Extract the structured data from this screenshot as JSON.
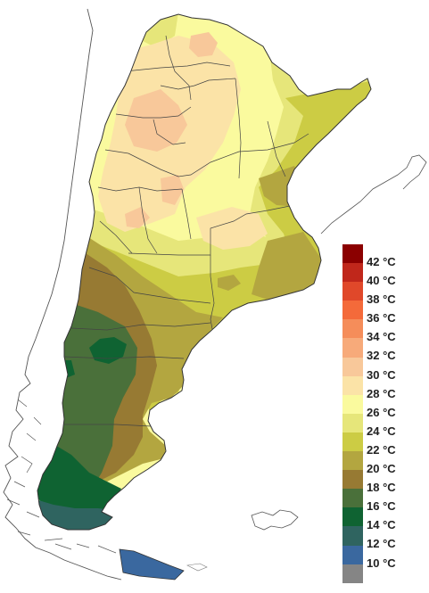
{
  "legend": {
    "bins": [
      {
        "color": "#8b0000",
        "label": "42 °C"
      },
      {
        "color": "#c0271b",
        "label": "40 °C"
      },
      {
        "color": "#e0482a",
        "label": "38 °C"
      },
      {
        "color": "#f46a3a",
        "label": "36 °C"
      },
      {
        "color": "#f58d5a",
        "label": "34 °C"
      },
      {
        "color": "#f7aa7a",
        "label": "32 °C"
      },
      {
        "color": "#f8c89a",
        "label": "30 °C"
      },
      {
        "color": "#fbe3a7",
        "label": "28 °C"
      },
      {
        "color": "#fafa9e",
        "label": "26 °C"
      },
      {
        "color": "#e6e67a",
        "label": "24 °C"
      },
      {
        "color": "#cccc44",
        "label": "22 °C"
      },
      {
        "color": "#b3a640",
        "label": "20 °C"
      },
      {
        "color": "#977a33",
        "label": "18 °C"
      },
      {
        "color": "#4a703a",
        "label": "16 °C"
      },
      {
        "color": "#0f6332",
        "label": "14 °C"
      },
      {
        "color": "#2f6460",
        "label": "12 °C"
      },
      {
        "color": "#3a689f",
        "label": "10 °C"
      },
      {
        "color": "#858585",
        "label": ""
      }
    ]
  },
  "colors": {
    "t28": "#fbe3a7",
    "t26": "#fafa9e",
    "t24": "#e6e67a",
    "t22": "#cccc44",
    "t20": "#b3a640",
    "t18": "#977a33",
    "t16": "#4a703a",
    "t14": "#0f6332",
    "t12": "#2f6460",
    "t10": "#3a689f",
    "t30": "#f8c89a",
    "coast": "#444444"
  }
}
